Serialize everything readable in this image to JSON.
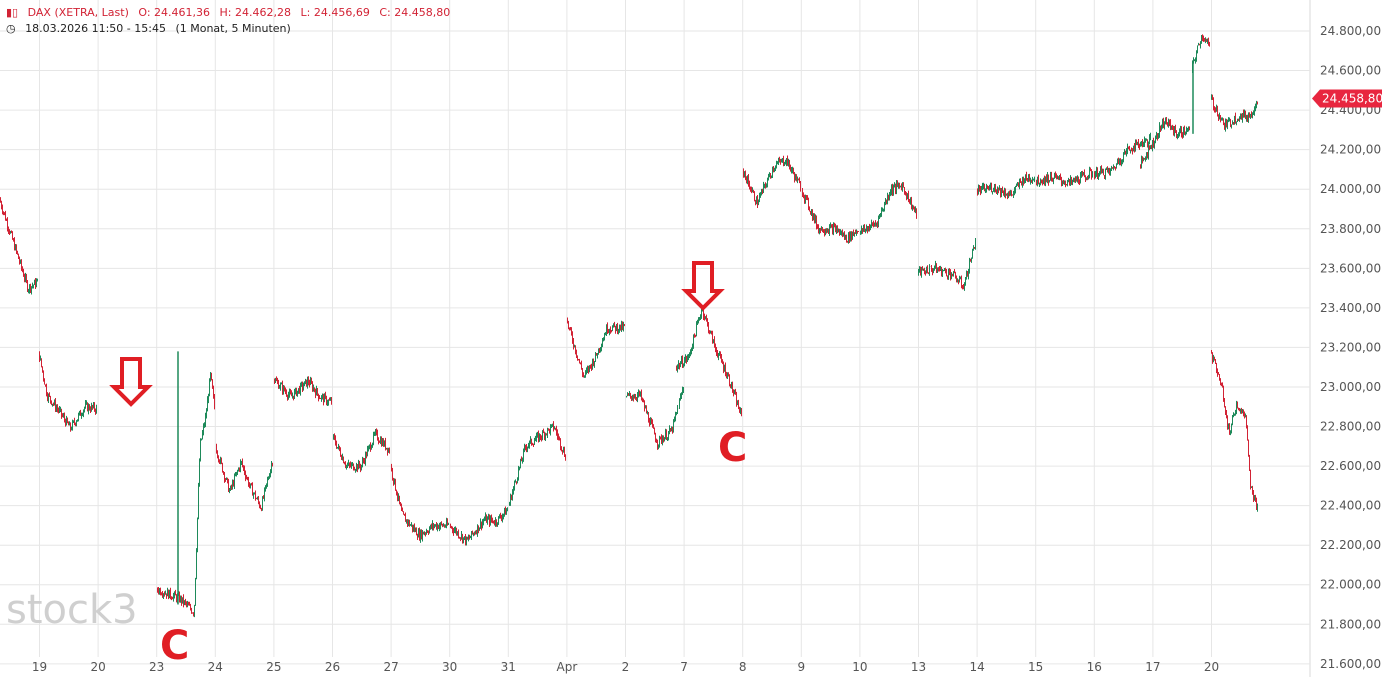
{
  "header": {
    "icon": "candlestick-icon",
    "instrument": "DAX (XETRA, Last)",
    "open": "O: 24.461,36",
    "high": "H: 24.462,28",
    "low": "L: 24.456,69",
    "close": "C: 24.458,80",
    "clock_icon": "clock-icon",
    "range": "18.03.2026 11:50 - 15:45",
    "period": "(1 Monat, 5 Minuten)"
  },
  "watermark": "stock3",
  "last_price_label": "24.458,80",
  "colors": {
    "up": "#1e8a5a",
    "down": "#d22335",
    "annotation": "#e01e24",
    "grid": "#e6e6e6",
    "badge": "#e8263f"
  },
  "chart_data": {
    "type": "candlestick",
    "title": "DAX (XETRA, Last)",
    "y_ticks": [
      21600,
      21800,
      22000,
      22200,
      22400,
      22600,
      22800,
      23000,
      23200,
      23400,
      23600,
      23800,
      24000,
      24200,
      24400,
      24600,
      24800
    ],
    "y_tick_labels": [
      "21.600,00",
      "21.800,00",
      "22.000,00",
      "22.200,00",
      "22.400,00",
      "22.600,00",
      "22.800,00",
      "23.000,00",
      "23.200,00",
      "23.400,00",
      "23.600,00",
      "23.800,00",
      "24.000,00",
      "24.200,00",
      "24.400,00",
      "24.600,00",
      "24.800,00"
    ],
    "ylim": [
      21600,
      24900
    ],
    "x_labels": [
      "19",
      "20",
      "23",
      "24",
      "25",
      "26",
      "27",
      "30",
      "31",
      "Apr",
      "2",
      "7",
      "8",
      "9",
      "10",
      "13",
      "14",
      "15",
      "16",
      "17",
      "20"
    ],
    "last_price": 24458.8,
    "sessions": [
      {
        "label": "18",
        "path": [
          [
            0,
            23950
          ],
          [
            0.25,
            23800
          ],
          [
            0.5,
            23650
          ],
          [
            0.75,
            23500
          ],
          [
            1,
            23530
          ]
        ]
      },
      {
        "label": "19",
        "path": [
          [
            0,
            23180
          ],
          [
            0.15,
            22960
          ],
          [
            0.35,
            22880
          ],
          [
            0.55,
            22790
          ],
          [
            0.8,
            22900
          ],
          [
            1,
            22890
          ]
        ]
      },
      {
        "label": "20",
        "path": [
          [
            0,
            23180
          ],
          [
            0.25,
            23000
          ],
          [
            0.4,
            22750
          ],
          [
            0.55,
            22920
          ],
          [
            0.75,
            22850
          ],
          [
            0.85,
            22500
          ],
          [
            1,
            22380
          ]
        ]
      },
      {
        "label": "23",
        "path": [
          [
            0,
            21980
          ],
          [
            0.4,
            21930
          ],
          [
            0.65,
            21860
          ],
          [
            0.75,
            22700
          ],
          [
            0.85,
            22850
          ],
          [
            0.93,
            23060
          ],
          [
            1,
            22900
          ]
        ]
      },
      {
        "label": "24",
        "path": [
          [
            0,
            22700
          ],
          [
            0.25,
            22470
          ],
          [
            0.45,
            22620
          ],
          [
            0.6,
            22500
          ],
          [
            0.8,
            22390
          ],
          [
            1,
            22630
          ]
        ]
      },
      {
        "label": "25",
        "path": [
          [
            0,
            23040
          ],
          [
            0.3,
            22950
          ],
          [
            0.6,
            23030
          ],
          [
            0.8,
            22950
          ],
          [
            1,
            22920
          ]
        ]
      },
      {
        "label": "26",
        "path": [
          [
            0,
            22750
          ],
          [
            0.25,
            22600
          ],
          [
            0.5,
            22600
          ],
          [
            0.75,
            22760
          ],
          [
            1,
            22680
          ]
        ]
      },
      {
        "label": "27",
        "path": [
          [
            0,
            22600
          ],
          [
            0.2,
            22350
          ],
          [
            0.5,
            22250
          ],
          [
            0.75,
            22300
          ],
          [
            1,
            22300
          ]
        ]
      },
      {
        "label": "30",
        "path": [
          [
            0,
            22300
          ],
          [
            0.3,
            22220
          ],
          [
            0.6,
            22330
          ],
          [
            0.8,
            22320
          ],
          [
            1,
            22380
          ]
        ]
      },
      {
        "label": "31",
        "path": [
          [
            0,
            22400
          ],
          [
            0.3,
            22700
          ],
          [
            0.6,
            22760
          ],
          [
            0.8,
            22800
          ],
          [
            1,
            22650
          ]
        ]
      },
      {
        "label": "Apr",
        "path": [
          [
            0,
            23340
          ],
          [
            0.3,
            23050
          ],
          [
            0.5,
            23150
          ],
          [
            0.7,
            23300
          ],
          [
            1,
            23300
          ]
        ]
      },
      {
        "label": "2",
        "path": [
          [
            0,
            22950
          ],
          [
            0.25,
            22960
          ],
          [
            0.55,
            22720
          ],
          [
            0.8,
            22780
          ],
          [
            1,
            23000
          ]
        ]
      },
      {
        "label": "7",
        "path": [
          [
            0,
            23100
          ],
          [
            0.2,
            23150
          ],
          [
            0.4,
            23400
          ],
          [
            0.6,
            23200
          ],
          [
            0.8,
            23050
          ],
          [
            1,
            22850
          ]
        ]
      },
      {
        "label": "8",
        "path": [
          [
            0,
            24100
          ],
          [
            0.25,
            23930
          ],
          [
            0.55,
            24120
          ],
          [
            0.75,
            24150
          ],
          [
            1,
            24010
          ]
        ]
      },
      {
        "label": "9",
        "path": [
          [
            0,
            24000
          ],
          [
            0.3,
            23800
          ],
          [
            0.6,
            23800
          ],
          [
            0.8,
            23750
          ],
          [
            1,
            23800
          ]
        ]
      },
      {
        "label": "10",
        "path": [
          [
            0,
            23780
          ],
          [
            0.3,
            23830
          ],
          [
            0.55,
            24000
          ],
          [
            0.75,
            24020
          ],
          [
            1,
            23870
          ]
        ]
      },
      {
        "label": "13",
        "path": [
          [
            0,
            23580
          ],
          [
            0.3,
            23600
          ],
          [
            0.6,
            23570
          ],
          [
            0.8,
            23510
          ],
          [
            1,
            23740
          ]
        ]
      },
      {
        "label": "14",
        "path": [
          [
            0,
            23990
          ],
          [
            0.3,
            24010
          ],
          [
            0.6,
            23970
          ],
          [
            0.8,
            24050
          ],
          [
            1,
            24060
          ]
        ]
      },
      {
        "label": "15",
        "path": [
          [
            0,
            24040
          ],
          [
            0.3,
            24060
          ],
          [
            0.6,
            24030
          ],
          [
            0.8,
            24060
          ],
          [
            1,
            24080
          ]
        ]
      },
      {
        "label": "16",
        "path": [
          [
            0,
            24080
          ],
          [
            0.3,
            24090
          ],
          [
            0.6,
            24200
          ],
          [
            0.8,
            24230
          ],
          [
            1,
            24250
          ]
        ]
      },
      {
        "label": "17",
        "path": [
          [
            0,
            24120
          ],
          [
            0.3,
            24250
          ],
          [
            0.5,
            24350
          ],
          [
            0.75,
            24280
          ],
          [
            1,
            24300
          ]
        ]
      },
      {
        "label": "17b",
        "path": [
          [
            0,
            24600
          ],
          [
            0.3,
            24700
          ],
          [
            0.6,
            24780
          ],
          [
            1,
            24720
          ]
        ]
      },
      {
        "label": "20",
        "path": [
          [
            0,
            24460
          ],
          [
            0.3,
            24320
          ],
          [
            0.6,
            24370
          ],
          [
            0.85,
            24370
          ],
          [
            1,
            24460
          ]
        ]
      }
    ],
    "annotations": [
      {
        "type": "arrow",
        "session": "20",
        "at": 0.55,
        "price": 22950
      },
      {
        "type": "arrow",
        "session": "7",
        "at": 0.4,
        "price": 23420
      },
      {
        "type": "label",
        "text": "C",
        "session": "23",
        "at": 0.1,
        "price": 21700
      },
      {
        "type": "label",
        "text": "C",
        "session": "7",
        "at": 1.1,
        "price": 22610
      }
    ]
  }
}
